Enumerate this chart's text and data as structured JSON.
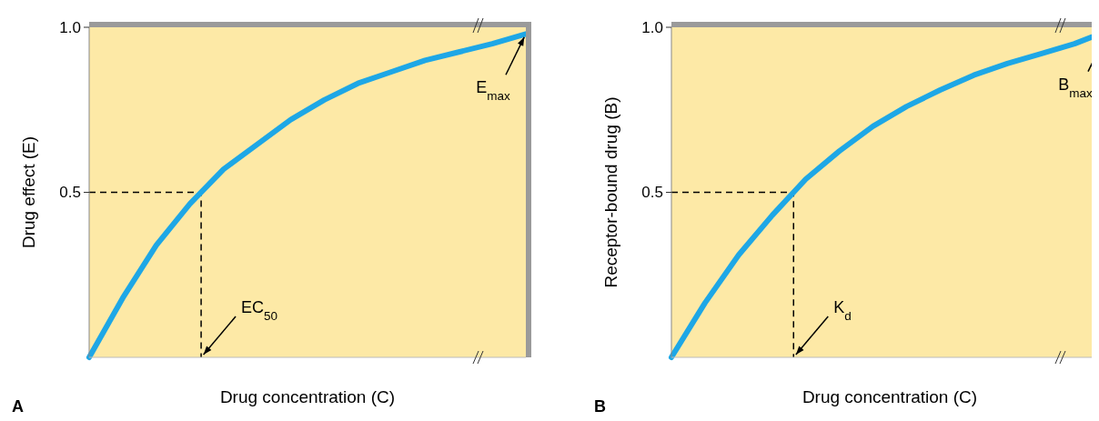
{
  "chart_data": [
    {
      "type": "line",
      "ylabel": "Drug effect (E)",
      "xlabel": "Drug concentration (C)",
      "ylim": [
        0,
        1
      ],
      "yticks": [
        0.5,
        {
          "value": 1,
          "label": "1.0"
        }
      ],
      "color": "#1ea7e6",
      "categories": [
        null,
        null,
        null,
        null,
        null,
        null,
        null,
        null,
        null,
        null,
        null,
        null,
        null,
        null
      ],
      "values": [
        0,
        0.18,
        0.34,
        0.465,
        0.57,
        0.645,
        0.72,
        0.78,
        0.83,
        0.865,
        0.9,
        0.925,
        0.95,
        0.98
      ],
      "ref_lines": [
        {
          "axis": "y",
          "value": 0.5,
          "color": "#000000",
          "line_style": "dashed"
        }
      ],
      "annotations": [
        "EC$_{50}$",
        "E$_{max}$",
        "A"
      ]
    },
    {
      "type": "line",
      "ylabel": "Receptor-bound drug (B)",
      "xlabel": "Drug concentration (C)",
      "ylim": [
        0,
        1
      ],
      "yticks": [
        0.5,
        {
          "value": 1,
          "label": "1.0"
        }
      ],
      "color": "#1ea7e6",
      "categories": [
        null,
        null,
        null,
        null,
        null,
        null,
        null,
        null,
        null,
        null,
        null,
        null,
        null,
        null
      ],
      "values": [
        0,
        0.165,
        0.31,
        0.43,
        0.54,
        0.625,
        0.7,
        0.76,
        0.81,
        0.855,
        0.89,
        0.92,
        0.95,
        0.99
      ],
      "ref_lines": [
        {
          "axis": "y",
          "value": 0.5,
          "color": "#000000",
          "line_style": "dashed"
        }
      ],
      "annotations": [
        "K$_{d}$",
        "B$_{max}$",
        "B"
      ]
    }
  ]
}
